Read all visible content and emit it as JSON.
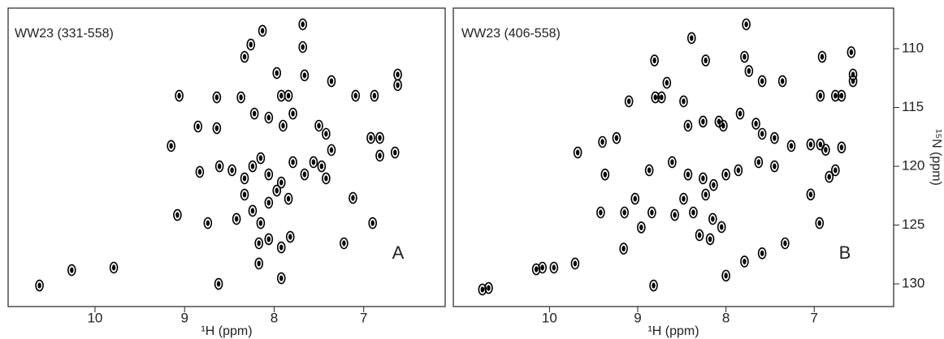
{
  "chart_data": [
    {
      "type": "scatter",
      "title": "WW23 (331-558)",
      "annotation": "A",
      "x_label": "¹H (ppm)",
      "color": "#000000",
      "xlim": [
        10.97,
        6.09
      ],
      "xticks": [
        10,
        9,
        8,
        7
      ],
      "ylim": [
        106.55,
        131.93
      ],
      "x": [
        10.62,
        10.26,
        9.79,
        8.26,
        8.13,
        7.68,
        7.68,
        8.33,
        7.97,
        7.66,
        7.36,
        7.09,
        6.88,
        6.62,
        6.62,
        8.64,
        8.37,
        7.92,
        7.84,
        9.06,
        9.15,
        8.85,
        8.64,
        9.08,
        8.22,
        8.06,
        7.9,
        7.79,
        7.5,
        7.42,
        7.36,
        6.92,
        6.82,
        6.82,
        6.65,
        8.83,
        8.61,
        8.47,
        8.33,
        8.24,
        8.15,
        8.06,
        7.92,
        7.79,
        7.66,
        7.56,
        7.47,
        7.42,
        8.33,
        8.24,
        8.15,
        8.06,
        7.97,
        7.84,
        8.42,
        8.17,
        8.06,
        7.92,
        8.17,
        7.92,
        8.62,
        7.22,
        6.9,
        7.12,
        8.74,
        7.82
      ],
      "values": [
        130.14,
        128.83,
        128.62,
        109.65,
        108.48,
        107.93,
        109.86,
        110.69,
        112.07,
        112.27,
        112.76,
        114.0,
        114.0,
        113.1,
        112.2,
        114.14,
        114.14,
        114.0,
        114.0,
        114.0,
        118.27,
        116.62,
        116.76,
        124.14,
        115.52,
        115.86,
        116.55,
        115.52,
        116.55,
        117.24,
        118.62,
        117.59,
        117.59,
        119.1,
        118.83,
        120.48,
        120.0,
        120.34,
        121.03,
        120.0,
        119.31,
        120.69,
        121.38,
        119.65,
        120.69,
        119.65,
        120.0,
        121.03,
        122.41,
        123.79,
        124.83,
        123.1,
        122.07,
        122.76,
        124.48,
        126.55,
        126.2,
        126.9,
        128.27,
        129.52,
        130.0,
        126.55,
        124.83,
        122.69,
        124.83,
        126.0
      ]
    },
    {
      "type": "scatter",
      "title": "WW23 (406-558)",
      "annotation": "B",
      "x_label": "¹H (ppm)",
      "y_label": "¹⁵N (ppm)",
      "color": "#000000",
      "xlim": [
        11.09,
        6.1
      ],
      "xticks": [
        10,
        9,
        8,
        7
      ],
      "ylim": [
        106.55,
        131.93
      ],
      "yticks": [
        110,
        115,
        120,
        125,
        130
      ],
      "x": [
        10.76,
        10.69,
        10.15,
        10.08,
        9.95,
        9.71,
        8.81,
        8.67,
        8.39,
        8.23,
        7.79,
        7.77,
        7.74,
        7.59,
        7.36,
        6.91,
        6.93,
        6.76,
        6.69,
        6.58,
        6.56,
        6.56,
        9.1,
        8.8,
        8.73,
        8.48,
        8.43,
        8.26,
        8.08,
        8.03,
        7.84,
        7.66,
        7.59,
        7.45,
        7.26,
        7.04,
        6.93,
        6.87,
        6.69,
        6.76,
        6.83,
        7.04,
        6.94,
        7.33,
        7.59,
        7.79,
        8.0,
        8.82,
        9.24,
        9.4,
        9.68,
        9.37,
        8.87,
        8.61,
        8.43,
        8.26,
        8.14,
        8.0,
        7.86,
        7.63,
        7.45,
        8.48,
        8.37,
        8.23,
        8.15,
        8.3,
        8.18,
        8.05,
        9.03,
        8.84,
        8.58,
        9.15,
        9.42,
        9.16,
        8.96
      ],
      "values": [
        130.48,
        130.35,
        128.76,
        128.62,
        128.62,
        128.27,
        111.0,
        112.9,
        109.1,
        111.0,
        110.69,
        107.93,
        111.9,
        112.76,
        112.76,
        110.69,
        114.0,
        114.0,
        114.0,
        110.3,
        112.2,
        112.76,
        114.48,
        114.14,
        114.14,
        114.48,
        116.55,
        116.2,
        116.2,
        116.55,
        115.52,
        116.38,
        117.24,
        117.6,
        118.27,
        118.14,
        118.14,
        118.6,
        118.4,
        120.34,
        120.9,
        122.4,
        124.83,
        126.55,
        127.4,
        128.1,
        129.3,
        130.14,
        117.6,
        117.93,
        118.83,
        120.7,
        120.34,
        119.65,
        120.7,
        121.03,
        121.6,
        120.7,
        120.34,
        119.65,
        120.0,
        122.76,
        123.93,
        122.41,
        124.48,
        125.86,
        126.2,
        125.17,
        122.76,
        123.93,
        124.14,
        123.93,
        123.93,
        127.0,
        125.2
      ]
    }
  ]
}
